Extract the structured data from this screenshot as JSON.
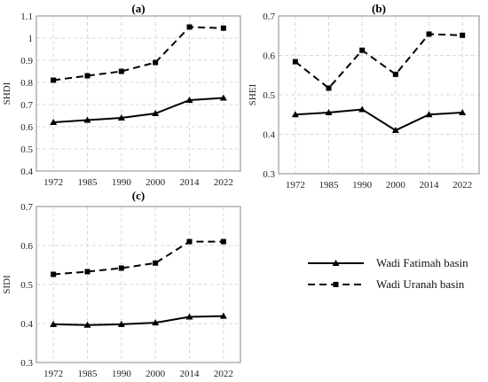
{
  "chart_data": [
    {
      "type": "line",
      "title": "(a)",
      "xlabel": "",
      "ylabel": "SHDI",
      "categories": [
        "1972",
        "1985",
        "1990",
        "2000",
        "2014",
        "2022"
      ],
      "ylim": [
        0.4,
        1.1
      ],
      "yticks": [
        "0.4",
        "0.5",
        "0.6",
        "0.7",
        "0.8",
        "0.9",
        "1",
        "1.1"
      ],
      "grid": true,
      "series": [
        {
          "name": "Wadi Fatimah basin",
          "values": [
            0.62,
            0.63,
            0.64,
            0.66,
            0.72,
            0.73
          ]
        },
        {
          "name": "Wadi Uranah basin",
          "values": [
            0.81,
            0.83,
            0.85,
            0.89,
            1.05,
            1.045
          ]
        }
      ]
    },
    {
      "type": "line",
      "title": "(b)",
      "xlabel": "",
      "ylabel": "SHEI",
      "categories": [
        "1972",
        "1985",
        "1990",
        "2000",
        "2014",
        "2022"
      ],
      "ylim": [
        0.3,
        0.7
      ],
      "yticks": [
        "0.3",
        "0.4",
        "0.5",
        "0.6",
        "0.7"
      ],
      "grid": true,
      "series": [
        {
          "name": "Wadi Fatimah basin",
          "values": [
            0.45,
            0.455,
            0.463,
            0.41,
            0.45,
            0.455
          ]
        },
        {
          "name": "Wadi Uranah basin",
          "values": [
            0.584,
            0.517,
            0.613,
            0.552,
            0.654,
            0.651
          ]
        }
      ]
    },
    {
      "type": "line",
      "title": "(c)",
      "xlabel": "",
      "ylabel": "SIDI",
      "categories": [
        "1972",
        "1985",
        "1990",
        "2000",
        "2014",
        "2022"
      ],
      "ylim": [
        0.3,
        0.7
      ],
      "yticks": [
        "0.3",
        "0.4",
        "0.5",
        "0.6",
        "0.7"
      ],
      "grid": true,
      "series": [
        {
          "name": "Wadi Fatimah basin",
          "values": [
            0.398,
            0.396,
            0.398,
            0.402,
            0.417,
            0.419
          ]
        },
        {
          "name": "Wadi Uranah basin",
          "values": [
            0.526,
            0.533,
            0.542,
            0.555,
            0.61,
            0.61
          ]
        }
      ]
    }
  ],
  "legend": {
    "items": [
      {
        "label": "Wadi Fatimah basin",
        "style": "solid",
        "marker": "triangle"
      },
      {
        "label": "Wadi Uranah basin",
        "style": "dashed",
        "marker": "square"
      }
    ]
  },
  "colors": {
    "line": "#000000",
    "grid": "#d9d9d9",
    "frame": "#888888"
  }
}
